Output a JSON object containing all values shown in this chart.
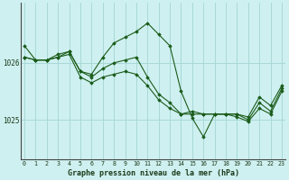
{
  "title": "Graphe pression niveau de la mer (hPa)",
  "background_color": "#cff0f0",
  "grid_color": "#a8d8d8",
  "line_color": "#1a5c1a",
  "ytick_labels": [
    "1025",
    "1026"
  ],
  "yticks": [
    1025,
    1026
  ],
  "ylim": [
    1024.3,
    1027.05
  ],
  "xlim": [
    -0.3,
    23.3
  ],
  "x_labels": [
    "0",
    "1",
    "2",
    "3",
    "4",
    "5",
    "6",
    "7",
    "8",
    "9",
    "10",
    "11",
    "12",
    "13",
    "14",
    "15",
    "16",
    "17",
    "18",
    "19",
    "20",
    "21",
    "22",
    "23"
  ],
  "series": [
    [
      1026.3,
      1026.05,
      1026.05,
      1026.15,
      1026.2,
      1025.85,
      1025.8,
      1026.1,
      1026.35,
      1026.45,
      1026.55,
      1026.7,
      1026.5,
      1026.3,
      1025.5,
      1025.03,
      1024.7,
      1025.1,
      1025.1,
      1025.1,
      1025.05,
      1025.4,
      1025.25,
      1025.6
    ],
    [
      1026.1,
      1026.05,
      1026.05,
      1026.1,
      1026.2,
      1025.85,
      1025.75,
      1025.9,
      1026.0,
      1026.05,
      1026.1,
      1025.75,
      1025.45,
      1025.3,
      1025.1,
      1025.15,
      1025.1,
      1025.1,
      1025.1,
      1025.1,
      1025.0,
      1025.3,
      1025.15,
      1025.55
    ],
    [
      1026.1,
      1026.05,
      1026.05,
      1026.1,
      1026.15,
      1025.75,
      1025.65,
      1025.75,
      1025.8,
      1025.85,
      1025.8,
      1025.6,
      1025.35,
      1025.2,
      1025.1,
      1025.1,
      1025.1,
      1025.1,
      1025.1,
      1025.05,
      1024.97,
      1025.2,
      1025.1,
      1025.5
    ]
  ]
}
